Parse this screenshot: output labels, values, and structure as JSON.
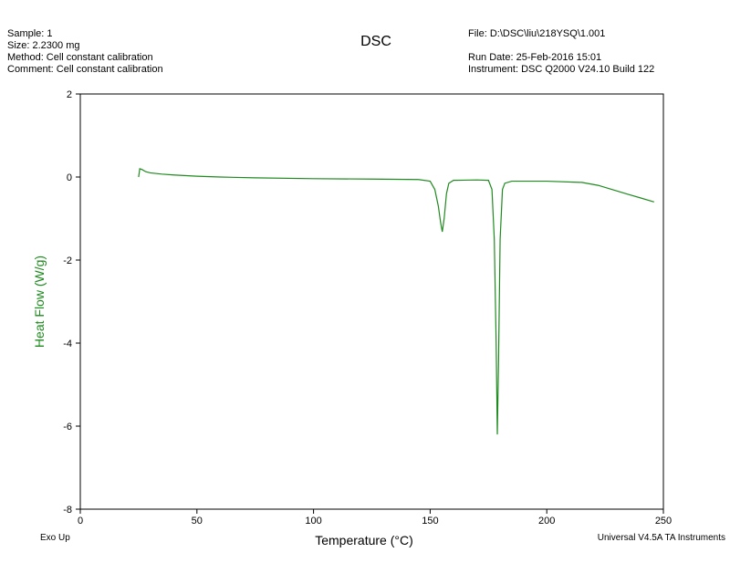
{
  "chart_data": {
    "type": "line",
    "title": "DSC",
    "header": {
      "left": [
        "Sample: 1",
        "Size:  2.2300 mg",
        "Method: Cell constant calibration",
        "Comment: Cell constant calibration"
      ],
      "right": [
        "File: D:\\DSC\\liu\\218YSQ\\1.001",
        "",
        "Run Date: 25-Feb-2016 15:01",
        "Instrument: DSC Q2000 V24.10 Build 122"
      ]
    },
    "footer": {
      "left": "Exo Up",
      "right": "Universal V4.5A TA Instruments"
    },
    "x_label": "Temperature (°C)",
    "y_label": "Heat Flow (W/g)",
    "xlim": [
      0,
      250
    ],
    "xticks": [
      0,
      50,
      100,
      150,
      200,
      250
    ],
    "ylim": [
      -8,
      2
    ],
    "yticks": [
      2,
      0,
      -2,
      -4,
      -6,
      -8
    ],
    "x": [
      25.0,
      25.5,
      26.5,
      28,
      30,
      35,
      40,
      50,
      60,
      75,
      100,
      125,
      145,
      150,
      152,
      153.5,
      154.5,
      155.2,
      156,
      157,
      158,
      160,
      170,
      175,
      176.5,
      177.5,
      178.3,
      178.8,
      179.3,
      180,
      181,
      182,
      185,
      200,
      215,
      222,
      228,
      235,
      240,
      246
    ],
    "series": [
      {
        "name": "Heat Flow",
        "color": "#1f8a1f",
        "values": [
          0.0,
          0.2,
          0.18,
          0.13,
          0.1,
          0.07,
          0.05,
          0.02,
          0.0,
          -0.02,
          -0.04,
          -0.05,
          -0.06,
          -0.1,
          -0.3,
          -0.7,
          -1.1,
          -1.32,
          -1.0,
          -0.4,
          -0.15,
          -0.08,
          -0.07,
          -0.08,
          -0.3,
          -1.5,
          -4.0,
          -6.2,
          -4.5,
          -1.5,
          -0.3,
          -0.15,
          -0.1,
          -0.1,
          -0.13,
          -0.2,
          -0.3,
          -0.42,
          -0.5,
          -0.6
        ]
      }
    ],
    "y_label_color": "#1f8a1f"
  }
}
